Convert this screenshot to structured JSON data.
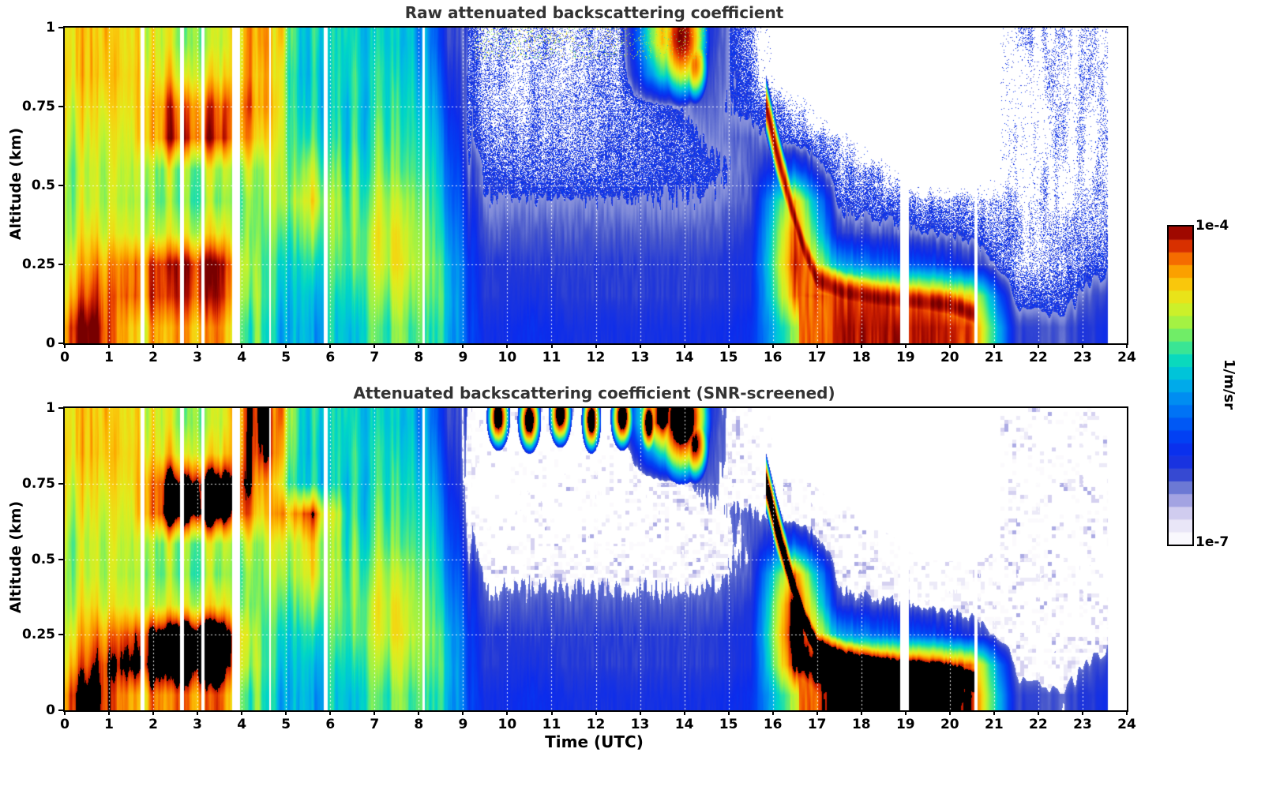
{
  "figure": {
    "background": "#ffffff",
    "title_color": "#333333",
    "x_axis": {
      "label": "Time (UTC)",
      "min": 0,
      "max": 24,
      "tick_labels": [
        "0",
        "1",
        "2",
        "3",
        "4",
        "5",
        "6",
        "7",
        "8",
        "9",
        "10",
        "11",
        "12",
        "13",
        "14",
        "15",
        "16",
        "17",
        "18",
        "19",
        "20",
        "21",
        "22",
        "23",
        "24"
      ]
    },
    "y_axis": {
      "label": "Altitude (km)",
      "min": 0,
      "max": 1,
      "tick_labels": [
        "0",
        "0.25",
        "0.5",
        "0.75",
        "1"
      ],
      "tick_values": [
        0,
        0.25,
        0.5,
        0.75,
        1
      ]
    },
    "colorbar": {
      "max_label": "1e-4",
      "min_label": "1e-7",
      "unit_label": "1/m/sr",
      "steps": 25
    }
  },
  "chart_data": {
    "type": "heatmap",
    "x_unit": "hours UTC",
    "y_unit": "km",
    "value_unit": "1/m/sr",
    "scale": {
      "type": "log10",
      "vmin": 1e-07,
      "vmax": 0.0001
    },
    "grid_t_centers": [
      0.5,
      1.5,
      2.5,
      3.5,
      4.5,
      5.5,
      6.5,
      7.5,
      8.5,
      9.5,
      10.5,
      11.5,
      12.5,
      13.5,
      14.5,
      15.5,
      16.5,
      17.5,
      18.5,
      19.5,
      20.5,
      21.5,
      22.5,
      23.5
    ],
    "grid_z_centers_top_to_bottom": [
      0.95,
      0.85,
      0.75,
      0.65,
      0.55,
      0.45,
      0.35,
      0.25,
      0.15,
      0.05
    ],
    "panels": [
      {
        "title": "Raw attenuated backscattering coefficient",
        "mode": "raw",
        "grid": [
          [
            -4.6,
            -4.7,
            -4.8,
            -4.9,
            -4.3,
            -5.4,
            -5.2,
            -5.3,
            -5.9,
            -6.9,
            -6.9,
            -6.9,
            -6.9,
            -4.5,
            -6.2,
            -6.8,
            null,
            null,
            null,
            null,
            null,
            -7.0,
            -7.0,
            -7.0
          ],
          [
            -4.6,
            -4.7,
            -4.6,
            -4.7,
            -4.4,
            -5.4,
            -5.2,
            -5.2,
            -5.8,
            -6.9,
            -6.9,
            -6.9,
            -6.8,
            -5.2,
            -6.3,
            -6.7,
            null,
            null,
            null,
            null,
            null,
            -7.0,
            -7.0,
            -7.0
          ],
          [
            -4.7,
            -4.8,
            -4.2,
            -4.3,
            -4.4,
            -5.3,
            -5.3,
            -5.1,
            -5.7,
            -6.9,
            -6.9,
            -6.8,
            -6.8,
            -6.6,
            -6.4,
            -6.6,
            -6.9,
            null,
            null,
            null,
            null,
            -7.0,
            -7.0,
            -7.0
          ],
          [
            -4.8,
            -4.9,
            -4.1,
            -4.2,
            -4.6,
            -5.1,
            -5.3,
            -5.0,
            -5.6,
            -6.8,
            -6.8,
            -6.8,
            -6.7,
            -6.7,
            -6.5,
            -6.4,
            -6.7,
            -6.9,
            null,
            null,
            null,
            -7.0,
            -7.0,
            -7.0
          ],
          [
            -4.9,
            -5.0,
            -4.9,
            -4.9,
            -4.9,
            -4.8,
            -5.2,
            -4.9,
            -5.5,
            -6.6,
            -6.7,
            -6.7,
            -6.7,
            -6.6,
            -6.6,
            -6.4,
            -5.8,
            -6.8,
            -6.9,
            null,
            null,
            -7.0,
            -7.0,
            -7.0
          ],
          [
            -4.9,
            -5.0,
            -5.0,
            -5.0,
            -5.0,
            -4.6,
            -5.1,
            -4.7,
            -5.4,
            -6.5,
            -6.5,
            -6.5,
            -6.5,
            -6.5,
            -6.5,
            -6.4,
            -4.5,
            -6.6,
            -6.7,
            -6.8,
            -6.9,
            -6.9,
            -7.0,
            -6.9
          ],
          [
            -4.8,
            -4.8,
            -4.8,
            -4.7,
            -5.1,
            -4.9,
            -5.0,
            -4.6,
            -5.3,
            -6.4,
            -6.4,
            -6.4,
            -6.4,
            -6.4,
            -6.4,
            -6.3,
            -4.2,
            -6.3,
            -6.4,
            -6.5,
            -6.6,
            -6.9,
            -6.9,
            -6.8
          ],
          [
            -4.6,
            -4.3,
            -4.1,
            -4.1,
            -5.2,
            -5.2,
            -5.0,
            -4.6,
            -5.2,
            -6.3,
            -6.3,
            -6.3,
            -6.3,
            -6.3,
            -6.3,
            -6.2,
            -4.1,
            -5.5,
            -5.8,
            -5.9,
            -6.2,
            -6.9,
            -6.9,
            -6.6
          ],
          [
            -4.4,
            -4.2,
            -4.2,
            -4.2,
            -5.2,
            -5.4,
            -5.1,
            -4.8,
            -5.2,
            -6.3,
            -6.2,
            -6.3,
            -6.3,
            -6.3,
            -6.3,
            -6.2,
            -4.3,
            -4.2,
            -4.2,
            -4.3,
            -4.6,
            -6.6,
            -6.7,
            -6.3
          ],
          [
            -4.1,
            -4.4,
            -4.5,
            -4.5,
            -5.3,
            -5.5,
            -5.2,
            -5.0,
            -5.3,
            -6.2,
            -6.1,
            -6.2,
            -6.2,
            -6.2,
            -6.2,
            -6.1,
            -4.9,
            -4.1,
            -4.1,
            -4.1,
            -4.2,
            -6.3,
            -6.4,
            -6.2
          ]
        ]
      },
      {
        "title": "Attenuated backscattering coefficient (SNR-screened)",
        "mode": "screened",
        "grid": [
          [
            -4.6,
            -4.7,
            -4.8,
            -4.9,
            -3.9,
            -5.4,
            -5.2,
            -5.3,
            -5.9,
            -6.9,
            -6.9,
            -6.9,
            -6.9,
            -3.8,
            -6.2,
            -6.8,
            null,
            null,
            null,
            null,
            null,
            -7.0,
            -7.0,
            -7.0
          ],
          [
            -4.6,
            -4.7,
            -4.6,
            -4.7,
            -4.0,
            -5.4,
            -5.2,
            -5.2,
            -5.8,
            -7.0,
            -7.0,
            -6.9,
            -6.9,
            -5.2,
            -6.3,
            -6.7,
            null,
            null,
            null,
            null,
            null,
            -7.0,
            -7.0,
            -7.0
          ],
          [
            -4.7,
            -4.8,
            -3.9,
            -3.9,
            -4.4,
            -5.3,
            -5.3,
            -5.1,
            -5.7,
            -7.0,
            -7.0,
            -6.9,
            -6.9,
            -6.6,
            -6.4,
            -6.6,
            -6.9,
            null,
            null,
            null,
            null,
            -7.0,
            -7.0,
            -7.0
          ],
          [
            -4.8,
            -4.9,
            -3.8,
            -3.9,
            -4.6,
            -4.05,
            -5.3,
            -5.0,
            -5.6,
            -6.9,
            -6.9,
            -6.9,
            -6.8,
            -6.7,
            -6.5,
            -6.4,
            -6.7,
            -6.9,
            null,
            null,
            null,
            -7.0,
            -7.0,
            -7.0
          ],
          [
            -4.9,
            -5.0,
            -4.9,
            -4.9,
            -4.9,
            -4.5,
            -5.2,
            -4.9,
            -5.5,
            -6.7,
            -6.8,
            -6.8,
            -6.8,
            -6.6,
            -6.6,
            -6.4,
            -5.8,
            -6.8,
            -6.9,
            null,
            null,
            -7.0,
            -7.0,
            -7.0
          ],
          [
            -4.9,
            -5.0,
            -5.0,
            -5.0,
            -5.0,
            -4.6,
            -5.1,
            -4.7,
            -5.4,
            -6.5,
            -6.5,
            -6.5,
            -6.5,
            -6.5,
            -6.5,
            -6.4,
            -4.3,
            -6.6,
            -6.7,
            -6.8,
            -6.9,
            -6.9,
            -7.0,
            -6.9
          ],
          [
            -4.8,
            -4.8,
            -4.8,
            -4.7,
            -5.1,
            -4.9,
            -5.0,
            -4.6,
            -5.3,
            -6.4,
            -6.4,
            -6.4,
            -6.4,
            -6.4,
            -6.4,
            -6.3,
            -3.9,
            -6.3,
            -6.4,
            -6.5,
            -6.6,
            -6.8,
            -6.9,
            -6.8
          ],
          [
            -4.6,
            -4.2,
            -3.8,
            -3.8,
            -5.2,
            -5.2,
            -5.0,
            -4.6,
            -5.2,
            -6.3,
            -6.3,
            -6.3,
            -6.3,
            -6.3,
            -6.3,
            -6.2,
            -3.8,
            -5.5,
            -5.8,
            -5.9,
            -6.2,
            -6.8,
            -6.9,
            -6.6
          ],
          [
            -4.4,
            -3.9,
            -3.9,
            -3.9,
            -5.2,
            -5.4,
            -5.1,
            -4.8,
            -5.2,
            -6.3,
            -6.2,
            -6.3,
            -6.3,
            -6.3,
            -6.3,
            -6.2,
            -4.0,
            -3.8,
            -3.8,
            -3.9,
            -4.3,
            -6.5,
            -6.7,
            -6.3
          ],
          [
            -4.1,
            -4.3,
            -4.4,
            -4.4,
            -5.3,
            -5.5,
            -5.2,
            -5.0,
            -5.3,
            -6.2,
            -6.1,
            -6.2,
            -6.2,
            -6.2,
            -6.2,
            -6.1,
            -4.8,
            -3.8,
            -3.8,
            -3.8,
            -4.1,
            -6.3,
            -6.4,
            -6.2
          ]
        ]
      }
    ],
    "features": {
      "gaps_t": [
        [
          1.72,
          1.8
        ],
        [
          2.6,
          2.7
        ],
        [
          3.08,
          3.16
        ],
        [
          3.78,
          3.97
        ],
        [
          4.62,
          4.66
        ],
        [
          5.86,
          5.94
        ],
        [
          8.08,
          8.13
        ],
        [
          18.88,
          19.07
        ],
        [
          20.55,
          20.62
        ],
        [
          23.57,
          24.0
        ]
      ],
      "descending_layer": {
        "path": [
          [
            15.85,
            0.75
          ],
          [
            16.1,
            0.6
          ],
          [
            16.4,
            0.44
          ],
          [
            16.7,
            0.3
          ],
          [
            17.0,
            0.2
          ],
          [
            17.6,
            0.16
          ],
          [
            18.4,
            0.14
          ],
          [
            19.3,
            0.13
          ],
          [
            20.0,
            0.12
          ],
          [
            20.6,
            0.09
          ]
        ],
        "half_width_km": 0.085,
        "peak_log10": {
          "raw": -4.05,
          "screened": -3.8
        }
      },
      "cloud_blobs": {
        "raw": [
          [
            13.95,
            0.97,
            0.3,
            0.1,
            -4.0
          ],
          [
            14.25,
            0.88,
            0.15,
            0.06,
            -4.3
          ]
        ],
        "screened": [
          [
            13.95,
            0.97,
            0.3,
            0.1,
            -3.7
          ],
          [
            14.25,
            0.88,
            0.15,
            0.06,
            -4.0
          ],
          [
            9.8,
            0.97,
            0.12,
            0.05,
            -3.8
          ],
          [
            10.5,
            0.96,
            0.12,
            0.05,
            -3.8
          ],
          [
            11.2,
            0.98,
            0.12,
            0.05,
            -3.8
          ],
          [
            11.9,
            0.96,
            0.1,
            0.05,
            -3.8
          ],
          [
            12.6,
            0.97,
            0.12,
            0.05,
            -3.8
          ],
          [
            13.2,
            0.95,
            0.1,
            0.05,
            -3.8
          ]
        ]
      }
    },
    "colormap_stops": [
      [
        0.0,
        "#ffffff"
      ],
      [
        0.04,
        "#f2f0fa"
      ],
      [
        0.08,
        "#e0dcf4"
      ],
      [
        0.11,
        "#c8c4ec"
      ],
      [
        0.14,
        "#a4a4e2"
      ],
      [
        0.17,
        "#7e8ad8"
      ],
      [
        0.2,
        "#4858cc"
      ],
      [
        0.24,
        "#2238d8"
      ],
      [
        0.29,
        "#0c2cec"
      ],
      [
        0.35,
        "#0044f4"
      ],
      [
        0.41,
        "#006cf6"
      ],
      [
        0.47,
        "#0094f0"
      ],
      [
        0.52,
        "#00b8e6"
      ],
      [
        0.57,
        "#00d6c6"
      ],
      [
        0.61,
        "#2ce2a0"
      ],
      [
        0.65,
        "#64ec70"
      ],
      [
        0.69,
        "#98f24a"
      ],
      [
        0.73,
        "#c4f22e"
      ],
      [
        0.77,
        "#e4ea1c"
      ],
      [
        0.81,
        "#f8d010"
      ],
      [
        0.85,
        "#fcaa00"
      ],
      [
        0.89,
        "#f87c00"
      ],
      [
        0.92,
        "#ee4c00"
      ],
      [
        0.95,
        "#cc2000"
      ],
      [
        0.98,
        "#a00800"
      ],
      [
        1.0,
        "#780000"
      ]
    ]
  }
}
